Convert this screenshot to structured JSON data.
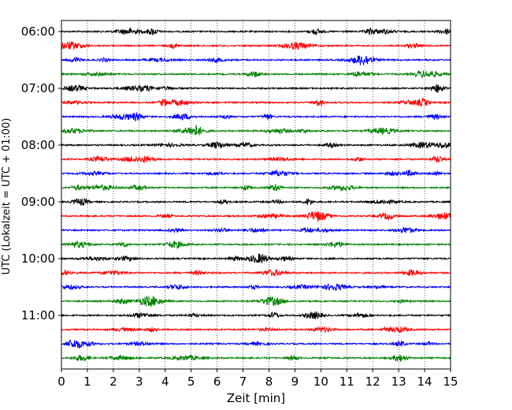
{
  "chart_data": {
    "type": "line",
    "title": "",
    "xlabel": "Zeit  [min]",
    "ylabel": "UTC (Lokalzeit = UTC + 01:00)",
    "xlim": [
      0,
      15
    ],
    "x_ticks": [
      0,
      1,
      2,
      3,
      4,
      5,
      6,
      7,
      8,
      9,
      10,
      11,
      12,
      13,
      14,
      15
    ],
    "y_ticks": [
      "06:00",
      "07:00",
      "08:00",
      "09:00",
      "10:00",
      "11:00"
    ],
    "grid": "vertical dotted lines at each minute",
    "trace_interval_minutes": 15,
    "trace_colors": [
      "#000000",
      "#ff0000",
      "#0000ff",
      "#008000"
    ],
    "series": [
      {
        "start": "06:00",
        "color": "#000000"
      },
      {
        "start": "06:15",
        "color": "#ff0000"
      },
      {
        "start": "06:30",
        "color": "#0000ff"
      },
      {
        "start": "06:45",
        "color": "#008000"
      },
      {
        "start": "07:00",
        "color": "#000000"
      },
      {
        "start": "07:15",
        "color": "#ff0000"
      },
      {
        "start": "07:30",
        "color": "#0000ff"
      },
      {
        "start": "07:45",
        "color": "#008000"
      },
      {
        "start": "08:00",
        "color": "#000000"
      },
      {
        "start": "08:15",
        "color": "#ff0000"
      },
      {
        "start": "08:30",
        "color": "#0000ff"
      },
      {
        "start": "08:45",
        "color": "#008000"
      },
      {
        "start": "09:00",
        "color": "#000000"
      },
      {
        "start": "09:15",
        "color": "#ff0000"
      },
      {
        "start": "09:30",
        "color": "#0000ff"
      },
      {
        "start": "09:45",
        "color": "#008000"
      },
      {
        "start": "10:00",
        "color": "#000000"
      },
      {
        "start": "10:15",
        "color": "#ff0000"
      },
      {
        "start": "10:30",
        "color": "#0000ff"
      },
      {
        "start": "10:45",
        "color": "#008000"
      },
      {
        "start": "11:00",
        "color": "#000000"
      },
      {
        "start": "11:15",
        "color": "#ff0000"
      },
      {
        "start": "11:30",
        "color": "#0000ff"
      },
      {
        "start": "11:45",
        "color": "#008000"
      }
    ]
  }
}
